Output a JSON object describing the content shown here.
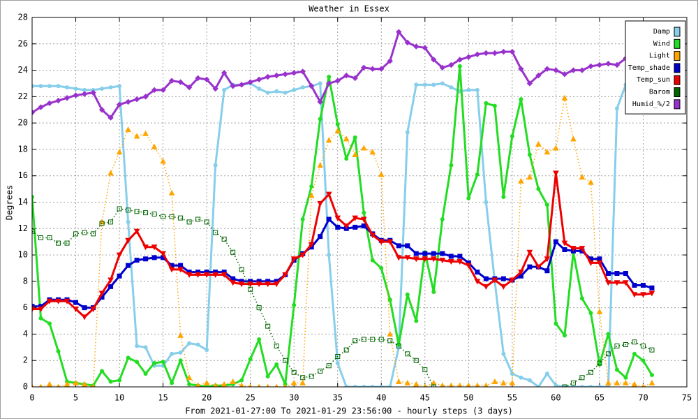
{
  "chart_data": {
    "type": "line",
    "title": "Weather in Essex",
    "x_label": "From 2021-01-27:00 To 2021-01-29 23:56:00 - hourly steps (3 days)",
    "y_label": "Degrees",
    "x": [
      0,
      1,
      2,
      3,
      4,
      5,
      6,
      7,
      8,
      9,
      10,
      11,
      12,
      13,
      14,
      15,
      16,
      17,
      18,
      19,
      20,
      21,
      22,
      23,
      24,
      25,
      26,
      27,
      28,
      29,
      30,
      31,
      32,
      33,
      34,
      35,
      36,
      37,
      38,
      39,
      40,
      41,
      42,
      43,
      44,
      45,
      46,
      47,
      48,
      49,
      50,
      51,
      52,
      53,
      54,
      55,
      56,
      57,
      58,
      59,
      60,
      61,
      62,
      63,
      64,
      65,
      66,
      67,
      68,
      69,
      70,
      71
    ],
    "xlim": [
      0,
      75
    ],
    "xticks": [
      0,
      5,
      10,
      15,
      20,
      25,
      30,
      35,
      40,
      45,
      50,
      55,
      60,
      65,
      70,
      75
    ],
    "ylim": [
      0,
      28
    ],
    "yticks": [
      0,
      2,
      4,
      6,
      8,
      10,
      12,
      14,
      16,
      18,
      20,
      22,
      24,
      26,
      28
    ],
    "grid": true,
    "legend": "top-right",
    "series": [
      {
        "name": "Damp",
        "color": "#87ceeb",
        "marker": "circle",
        "style": "solid",
        "values": [
          22.8,
          22.8,
          22.8,
          22.8,
          22.7,
          22.6,
          22.5,
          22.5,
          22.6,
          22.7,
          22.8,
          12.5,
          3.1,
          3.0,
          1.6,
          1.6,
          2.5,
          2.6,
          3.3,
          3.2,
          2.8,
          16.8,
          22.5,
          22.9,
          22.9,
          23.0,
          22.6,
          22.3,
          22.4,
          22.3,
          22.5,
          22.7,
          22.8,
          23.0,
          10,
          1.8,
          0,
          0,
          0,
          0,
          0,
          0,
          3,
          19.3,
          22.9,
          22.9,
          22.9,
          23.0,
          22.7,
          22.4,
          22.5,
          22.5,
          14,
          8,
          2.5,
          1.0,
          0.7,
          0.5,
          0,
          1.0,
          0.1,
          0,
          0,
          0,
          0,
          0,
          0,
          21.1,
          22.9,
          null,
          null,
          null
        ]
      },
      {
        "name": "Wind",
        "color": "#22dd22",
        "marker": "circle",
        "style": "solid",
        "values": [
          14.4,
          5.2,
          4.8,
          2.7,
          0.4,
          0.3,
          0.2,
          0.1,
          1.2,
          0.4,
          0.5,
          2.2,
          1.9,
          1.0,
          1.8,
          1.9,
          0.3,
          2.0,
          0.2,
          0.1,
          0,
          0.1,
          0.1,
          0.2,
          0.5,
          2.1,
          3.6,
          0.8,
          1.7,
          0.2,
          6.2,
          12.7,
          15.2,
          20.3,
          23.5,
          19.9,
          17.3,
          18.9,
          13.2,
          9.6,
          9.0,
          6.6,
          3.2,
          7.0,
          5.0,
          10.2,
          7.2,
          12.7,
          16.8,
          24.3,
          14.3,
          16.1,
          21.5,
          21.3,
          14.4,
          19.0,
          21.8,
          17.6,
          15.0,
          13.8,
          4.8,
          3.9,
          10.2,
          6.7,
          5.6,
          1.7,
          4.0,
          1.3,
          0.7,
          2.5,
          2.0,
          0.9
        ]
      },
      {
        "name": "Light",
        "color": "#ffa500",
        "marker": "triangle",
        "style": "dotted",
        "values": [
          0,
          0,
          0.2,
          0,
          0.2,
          0.3,
          0.2,
          0,
          12.5,
          16.2,
          17.8,
          19.5,
          19.0,
          19.2,
          18.2,
          17.1,
          14.7,
          3.9,
          0.7,
          0.1,
          0.3,
          0.1,
          0.2,
          0.4,
          0.1,
          0,
          0,
          0,
          0,
          0,
          0.3,
          0.3,
          14.5,
          16.8,
          18.7,
          19.4,
          18.8,
          17.6,
          18.1,
          17.8,
          16.1,
          4.0,
          0.4,
          0.3,
          0.2,
          0,
          0.3,
          0.1,
          0.1,
          0.1,
          0.1,
          0.1,
          0.1,
          0.4,
          0.3,
          0.3,
          15.6,
          15.9,
          18.4,
          17.8,
          18.1,
          21.9,
          18.8,
          15.9,
          15.5,
          5.7,
          0.3,
          0.3,
          0.3,
          0.2,
          0,
          0.3
        ]
      },
      {
        "name": "Temp_shade",
        "color": "#0000cc",
        "marker": "square",
        "style": "solid",
        "values": [
          6.1,
          6.1,
          6.6,
          6.6,
          6.6,
          6.4,
          6.0,
          6.0,
          6.8,
          7.6,
          8.4,
          9.2,
          9.6,
          9.7,
          9.8,
          9.8,
          9.2,
          9.2,
          8.7,
          8.7,
          8.7,
          8.7,
          8.7,
          8.2,
          8.0,
          8.0,
          8.0,
          8.0,
          8.0,
          8.5,
          9.6,
          10.1,
          10.6,
          11.4,
          12.7,
          12.1,
          12.0,
          12.1,
          12.2,
          11.6,
          11.1,
          11.1,
          10.7,
          10.7,
          10.1,
          10.1,
          10.1,
          10.1,
          9.9,
          9.9,
          9.4,
          8.7,
          8.2,
          8.2,
          8.2,
          8.1,
          8.4,
          9.1,
          9.1,
          8.8,
          11.0,
          10.4,
          10.3,
          10.3,
          9.7,
          9.7,
          8.6,
          8.6,
          8.6,
          7.7,
          7.7,
          7.5
        ]
      },
      {
        "name": "Temp_sun",
        "color": "#ee0000",
        "marker": "down-triangle",
        "style": "solid",
        "values": [
          5.9,
          5.9,
          6.5,
          6.5,
          6.5,
          5.9,
          5.3,
          5.9,
          7.1,
          8.1,
          10.0,
          11.1,
          11.8,
          10.6,
          10.6,
          10.1,
          8.9,
          8.9,
          8.5,
          8.5,
          8.5,
          8.5,
          8.5,
          7.9,
          7.8,
          7.8,
          7.8,
          7.8,
          7.8,
          8.5,
          9.7,
          10.0,
          10.8,
          13.9,
          14.6,
          12.8,
          12.2,
          12.8,
          12.7,
          11.5,
          11.0,
          11.0,
          9.8,
          9.8,
          9.7,
          9.7,
          9.7,
          9.6,
          9.5,
          9.5,
          9.2,
          8.0,
          7.6,
          8.1,
          7.6,
          8.1,
          8.7,
          10.2,
          9.1,
          9.7,
          16.2,
          10.9,
          10.5,
          10.5,
          9.4,
          9.4,
          7.9,
          7.9,
          7.9,
          7.0,
          7.0,
          7.1
        ]
      },
      {
        "name": "Barom",
        "color": "#006400",
        "marker": "hollow-square",
        "style": "dotted",
        "values": [
          11.8,
          11.3,
          11.3,
          10.9,
          10.9,
          11.6,
          11.7,
          11.6,
          12.4,
          12.5,
          13.5,
          13.4,
          13.3,
          13.2,
          13.1,
          12.9,
          12.9,
          12.8,
          12.5,
          12.7,
          12.5,
          11.7,
          11.2,
          10.2,
          8.9,
          7.4,
          6.0,
          4.6,
          3.1,
          2.0,
          1.1,
          0.7,
          0.8,
          1.2,
          1.6,
          2.3,
          2.8,
          3.5,
          3.6,
          3.6,
          3.6,
          3.5,
          3.1,
          2.5,
          2.0,
          1.3,
          0.0,
          null,
          null,
          null,
          null,
          null,
          null,
          null,
          null,
          null,
          null,
          null,
          null,
          null,
          null,
          0.0,
          0.3,
          0.7,
          1.1,
          1.8,
          2.5,
          3.1,
          3.2,
          3.4,
          3.1,
          2.8
        ]
      },
      {
        "name": "Humid_%/2",
        "color": "#9932cc",
        "marker": "diamond",
        "style": "solid",
        "values": [
          20.8,
          21.2,
          21.5,
          21.7,
          21.9,
          22.1,
          22.2,
          22.3,
          21.0,
          20.4,
          21.4,
          21.6,
          21.8,
          22.0,
          22.5,
          22.5,
          23.2,
          23.1,
          22.7,
          23.4,
          23.3,
          22.6,
          23.8,
          22.8,
          22.9,
          23.1,
          23.3,
          23.5,
          23.6,
          23.7,
          23.8,
          23.9,
          22.8,
          21.6,
          23.0,
          23.2,
          23.6,
          23.4,
          24.2,
          24.1,
          24.1,
          24.7,
          26.9,
          26.1,
          25.8,
          25.7,
          24.8,
          24.2,
          24.4,
          24.8,
          25.0,
          25.2,
          25.3,
          25.3,
          25.4,
          25.4,
          24.1,
          23.0,
          23.6,
          24.1,
          24.0,
          23.7,
          24.0,
          24.0,
          24.3,
          24.4,
          24.5,
          24.4,
          24.9,
          null,
          null,
          null
        ]
      }
    ]
  }
}
